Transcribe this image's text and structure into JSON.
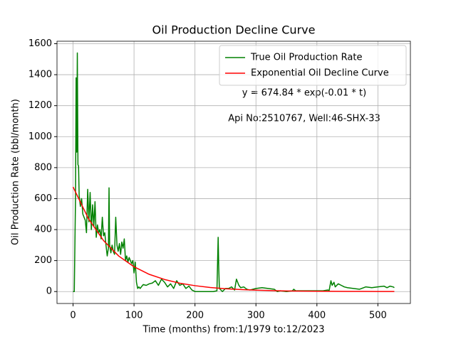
{
  "chart_data": {
    "type": "line",
    "title": "Oil Production Decline Curve",
    "xlabel": "Time (months) from:1/1979 to:12/2023",
    "ylabel": "Oil Production Rate (bbl/month)",
    "annotations": [
      "y = 674.84 * exp(-0.01 * t)",
      "Api No:2510767, Well:46-SHX-33"
    ],
    "xlim": [
      -26.35,
      553.35
    ],
    "ylim": [
      -77,
      1616
    ],
    "xticks": [
      0,
      100,
      200,
      300,
      400,
      500
    ],
    "yticks": [
      0,
      200,
      400,
      600,
      800,
      1000,
      1200,
      1400,
      1600
    ],
    "grid": true,
    "legend": "upper right",
    "series": [
      {
        "name": "True Oil Production Rate",
        "color": "#008000",
        "x": [
          0,
          2,
          4,
          5,
          6,
          7,
          8,
          9,
          10,
          12,
          14,
          16,
          18,
          20,
          22,
          24,
          26,
          28,
          30,
          32,
          34,
          36,
          38,
          40,
          42,
          44,
          46,
          48,
          50,
          52,
          54,
          56,
          58,
          59,
          60,
          62,
          64,
          66,
          68,
          70,
          72,
          74,
          76,
          78,
          80,
          82,
          84,
          86,
          88,
          90,
          92,
          94,
          96,
          98,
          100,
          102,
          104,
          106,
          108,
          110,
          115,
          120,
          125,
          130,
          135,
          140,
          145,
          150,
          155,
          160,
          165,
          170,
          175,
          180,
          185,
          190,
          195,
          200,
          210,
          220,
          230,
          236,
          238,
          239,
          240,
          245,
          250,
          255,
          260,
          265,
          268,
          270,
          272,
          275,
          280,
          285,
          290,
          300,
          310,
          320,
          330,
          335,
          340,
          350,
          360,
          362,
          365,
          370,
          380,
          390,
          400,
          410,
          418,
          420,
          423,
          425,
          428,
          430,
          435,
          440,
          445,
          450,
          460,
          470,
          480,
          490,
          500,
          510,
          515,
          520,
          525,
          527
        ],
        "values": [
          0,
          0,
          600,
          1380,
          900,
          1540,
          820,
          810,
          620,
          550,
          600,
          500,
          480,
          460,
          380,
          660,
          450,
          640,
          400,
          560,
          420,
          580,
          350,
          430,
          380,
          400,
          340,
          480,
          360,
          380,
          300,
          230,
          280,
          670,
          300,
          250,
          300,
          260,
          240,
          480,
          300,
          260,
          310,
          240,
          320,
          280,
          340,
          200,
          230,
          190,
          220,
          200,
          180,
          200,
          120,
          190,
          60,
          20,
          30,
          20,
          45,
          40,
          50,
          55,
          70,
          40,
          80,
          60,
          30,
          50,
          20,
          70,
          40,
          50,
          20,
          35,
          10,
          0,
          0,
          0,
          0,
          5,
          350,
          150,
          20,
          0,
          20,
          20,
          30,
          10,
          80,
          60,
          40,
          25,
          30,
          15,
          10,
          20,
          25,
          20,
          15,
          0,
          5,
          0,
          5,
          15,
          5,
          5,
          5,
          5,
          5,
          5,
          10,
          5,
          70,
          40,
          60,
          30,
          50,
          40,
          30,
          25,
          20,
          15,
          30,
          25,
          30,
          35,
          25,
          35,
          30,
          25
        ]
      },
      {
        "name": "Exponential Oil Decline Curve",
        "color": "#ff0000",
        "x": [
          0,
          25,
          50,
          75,
          100,
          125,
          150,
          175,
          200,
          225,
          250,
          275,
          300,
          350,
          400,
          450,
          500,
          527
        ],
        "values": [
          675,
          472,
          329,
          229,
          160,
          111,
          78,
          54,
          38,
          26,
          18,
          13,
          9,
          4,
          2,
          1,
          0.5,
          0.3
        ]
      }
    ]
  }
}
